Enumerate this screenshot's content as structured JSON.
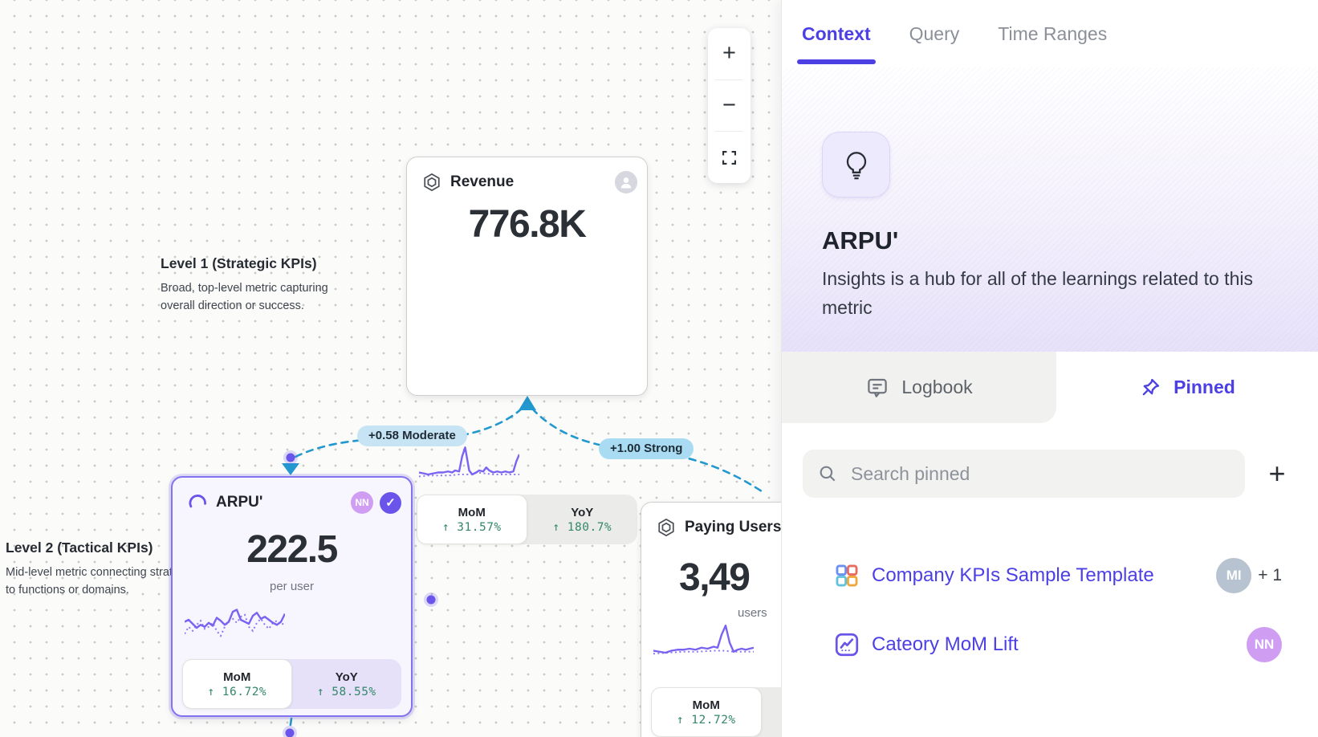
{
  "colors": {
    "accent": "#4c40e4",
    "purple": "#7a63f1",
    "cardSelectedBorder": "#8273ef",
    "edgeBlue": "#2298cf",
    "pillModerate": "#c7e4f4",
    "pillStrong": "#a9dcf2",
    "green": "#33876a",
    "heroTo": "#e7e1f9",
    "logbookBg": "#f1f1ef",
    "nnBadge": "#cf9ef3",
    "miBadge": "#b7c3d1",
    "checkBadge": "#6a55ea"
  },
  "canvas": {
    "zoom_toolbar": {
      "zoom_in": "+",
      "zoom_out": "−"
    },
    "levels": [
      {
        "title": "Level 1 (Strategic KPIs)",
        "description": "Broad, top-level metric capturing overall direction or success."
      },
      {
        "title": "Level 2 (Tactical KPIs)",
        "description": "Mid-level metric connecting strategy to functions or domains."
      }
    ],
    "edges": [
      {
        "label": "+0.58 Moderate"
      },
      {
        "label": "+1.00 Strong"
      }
    ],
    "cards": [
      {
        "title": "Revenue",
        "value": "776.8K",
        "unit": "",
        "segments": [
          {
            "label": "MoM",
            "delta": "↑ 31.57%"
          },
          {
            "label": "YoY",
            "delta": "↑ 180.7%"
          }
        ],
        "spark": [
          [
            0,
            30
          ],
          [
            5,
            31
          ],
          [
            9,
            32
          ],
          [
            14,
            31
          ],
          [
            19,
            30
          ],
          [
            24,
            30
          ],
          [
            29,
            29
          ],
          [
            33,
            30
          ],
          [
            36,
            28
          ],
          [
            40,
            29
          ],
          [
            43,
            14
          ],
          [
            46,
            5
          ],
          [
            50,
            28
          ],
          [
            53,
            32
          ],
          [
            57,
            30
          ],
          [
            60,
            28
          ],
          [
            64,
            29
          ],
          [
            67,
            25
          ],
          [
            70,
            28
          ],
          [
            74,
            30
          ],
          [
            78,
            29
          ],
          [
            82,
            30
          ],
          [
            86,
            29
          ],
          [
            90,
            30
          ],
          [
            94,
            29
          ],
          [
            97,
            19
          ],
          [
            100,
            12
          ]
        ],
        "spark_dotted": [
          [
            0,
            34
          ],
          [
            10,
            33
          ],
          [
            20,
            33
          ],
          [
            30,
            33
          ],
          [
            40,
            32
          ],
          [
            50,
            32
          ],
          [
            58,
            30
          ],
          [
            66,
            31
          ],
          [
            74,
            32
          ],
          [
            82,
            32
          ],
          [
            90,
            32
          ],
          [
            100,
            32
          ]
        ]
      },
      {
        "title": "ARPU'",
        "avatar": "NN",
        "value": "222.5",
        "unit": "per user",
        "segments": [
          {
            "label": "MoM",
            "delta": "↑ 16.72%"
          },
          {
            "label": "YoY",
            "delta": "↑ 58.55%"
          }
        ],
        "spark": [
          [
            0,
            18
          ],
          [
            4,
            16
          ],
          [
            8,
            20
          ],
          [
            12,
            24
          ],
          [
            16,
            21
          ],
          [
            20,
            23
          ],
          [
            24,
            19
          ],
          [
            28,
            22
          ],
          [
            32,
            14
          ],
          [
            36,
            17
          ],
          [
            40,
            21
          ],
          [
            44,
            18
          ],
          [
            48,
            8
          ],
          [
            52,
            6
          ],
          [
            56,
            16
          ],
          [
            60,
            18
          ],
          [
            64,
            20
          ],
          [
            68,
            12
          ],
          [
            72,
            9
          ],
          [
            76,
            15
          ],
          [
            80,
            13
          ],
          [
            84,
            16
          ],
          [
            88,
            19
          ],
          [
            92,
            21
          ],
          [
            96,
            18
          ],
          [
            100,
            10
          ]
        ],
        "spark_dotted": [
          [
            0,
            30
          ],
          [
            4,
            23
          ],
          [
            8,
            27
          ],
          [
            12,
            21
          ],
          [
            16,
            17
          ],
          [
            20,
            25
          ],
          [
            24,
            23
          ],
          [
            28,
            19
          ],
          [
            32,
            27
          ],
          [
            36,
            32
          ],
          [
            40,
            23
          ],
          [
            44,
            17
          ],
          [
            48,
            15
          ],
          [
            52,
            19
          ],
          [
            56,
            13
          ],
          [
            60,
            11
          ],
          [
            64,
            23
          ],
          [
            68,
            27
          ],
          [
            72,
            19
          ],
          [
            76,
            15
          ],
          [
            80,
            21
          ],
          [
            84,
            25
          ],
          [
            88,
            19
          ],
          [
            92,
            17
          ],
          [
            96,
            21
          ],
          [
            100,
            19
          ]
        ]
      },
      {
        "title": "Paying Users'",
        "value": "3,49",
        "unit": "users",
        "segments": [
          {
            "label": "MoM",
            "delta": "↑ 12.72%"
          }
        ],
        "spark": [
          [
            0,
            30
          ],
          [
            6,
            31
          ],
          [
            12,
            32
          ],
          [
            18,
            30
          ],
          [
            24,
            29
          ],
          [
            30,
            29
          ],
          [
            36,
            28
          ],
          [
            42,
            29
          ],
          [
            48,
            27
          ],
          [
            54,
            28
          ],
          [
            60,
            26
          ],
          [
            64,
            27
          ],
          [
            68,
            14
          ],
          [
            72,
            5
          ],
          [
            76,
            22
          ],
          [
            80,
            31
          ],
          [
            84,
            29
          ],
          [
            88,
            28
          ],
          [
            92,
            29
          ],
          [
            96,
            28
          ],
          [
            100,
            27
          ]
        ],
        "spark_dotted": [
          [
            0,
            33
          ],
          [
            15,
            32
          ],
          [
            30,
            31
          ],
          [
            45,
            31
          ],
          [
            60,
            30
          ],
          [
            70,
            30
          ],
          [
            80,
            31
          ],
          [
            90,
            31
          ],
          [
            100,
            31
          ]
        ]
      }
    ]
  },
  "panel": {
    "tabs": [
      {
        "label": "Context"
      },
      {
        "label": "Query"
      },
      {
        "label": "Time Ranges"
      }
    ],
    "hero": {
      "title": "ARPU'",
      "description": "Insights is a hub for all of the learnings related to this metric"
    },
    "subtabs": {
      "logbook": "Logbook",
      "pinned": "Pinned"
    },
    "search": {
      "placeholder": "Search pinned"
    },
    "add_button": "+",
    "pinned_items": [
      {
        "label": "Company KPIs Sample Template",
        "avatar": "MI",
        "extra": "+ 1"
      },
      {
        "label": "Cateory MoM Lift",
        "avatar": "NN",
        "extra": ""
      }
    ]
  }
}
